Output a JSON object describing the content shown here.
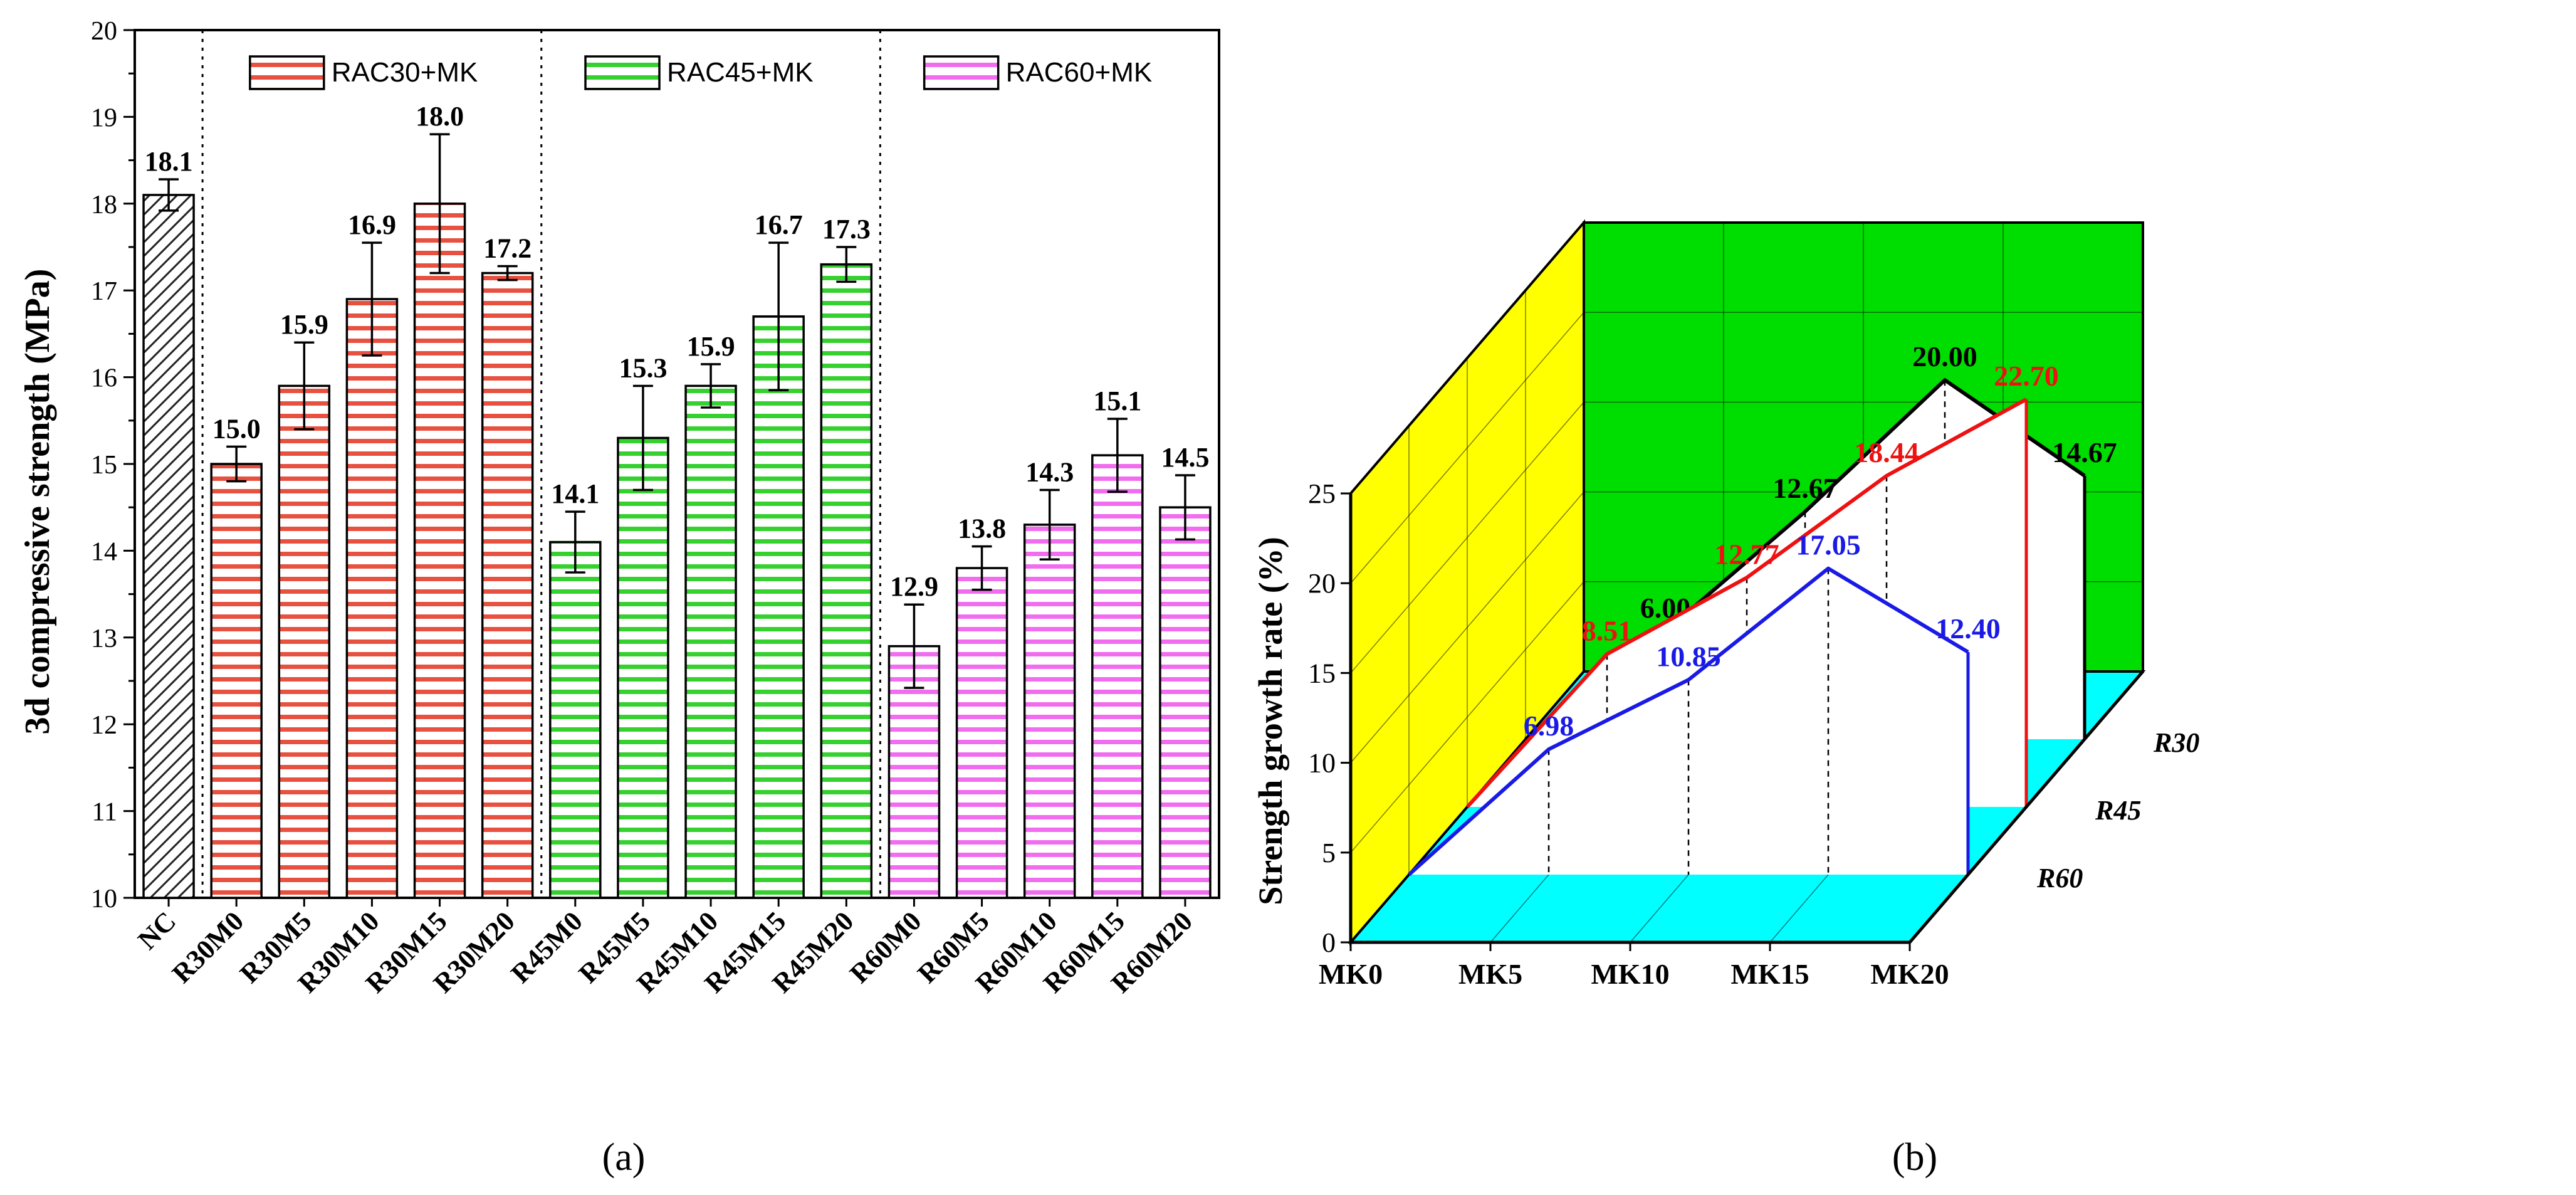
{
  "chart_data": [
    {
      "type": "bar",
      "panel_label": "(a)",
      "ylabel": "3d compressive strength (MPa)",
      "xlabel": "",
      "ylim": [
        10,
        20
      ],
      "yticks": [
        "10",
        "11",
        "12",
        "13",
        "14",
        "15",
        "16",
        "17",
        "18",
        "19",
        "20"
      ],
      "legend": [
        {
          "name": "RAC30+MK",
          "color": "#e8503f"
        },
        {
          "name": "RAC45+MK",
          "color": "#35d12f"
        },
        {
          "name": "RAC60+MK",
          "color": "#f26cf0"
        }
      ],
      "categories": [
        "NC",
        "R30M0",
        "R30M5",
        "R30M10",
        "R30M15",
        "R30M20",
        "R45M0",
        "R45M5",
        "R45M10",
        "R45M15",
        "R45M20",
        "R60M0",
        "R60M5",
        "R60M10",
        "R60M15",
        "R60M20"
      ],
      "values": [
        18.1,
        15.0,
        15.9,
        16.9,
        18.0,
        17.2,
        14.1,
        15.3,
        15.9,
        16.7,
        17.3,
        12.9,
        13.8,
        14.3,
        15.1,
        14.5
      ],
      "labels": [
        "18.1",
        "15.0",
        "15.9",
        "16.9",
        "18.0",
        "17.2",
        "14.1",
        "15.3",
        "15.9",
        "16.7",
        "17.3",
        "12.9",
        "13.8",
        "14.3",
        "15.1",
        "14.5"
      ],
      "errors": [
        0.18,
        0.2,
        0.5,
        0.65,
        0.8,
        0.08,
        0.35,
        0.6,
        0.25,
        0.85,
        0.2,
        0.48,
        0.25,
        0.4,
        0.42,
        0.37
      ],
      "groups": [
        "NC",
        "RAC30",
        "RAC30",
        "RAC30",
        "RAC30",
        "RAC30",
        "RAC45",
        "RAC45",
        "RAC45",
        "RAC45",
        "RAC45",
        "RAC60",
        "RAC60",
        "RAC60",
        "RAC60",
        "RAC60"
      ],
      "colors": {
        "NC": "#9a9a9a",
        "RAC30": "#e8503f",
        "RAC45": "#35d12f",
        "RAC60": "#f26cf0"
      }
    },
    {
      "type": "line",
      "panel_label": "(b)",
      "ylabel": "Strength growth rate (%)",
      "ylim": [
        0,
        25
      ],
      "yticks": [
        "0",
        "5",
        "10",
        "15",
        "20",
        "25"
      ],
      "categories": [
        "MK0",
        "MK5",
        "MK10",
        "MK15",
        "MK20"
      ],
      "series": [
        {
          "name": "R30",
          "color": "#000000",
          "values": [
            0,
            6.0,
            12.67,
            20.0,
            14.67
          ],
          "labels": [
            "",
            "6.00",
            "12.67",
            "20.00",
            "14.67"
          ]
        },
        {
          "name": "R45",
          "color": "#ee1111",
          "values": [
            0,
            8.51,
            12.77,
            18.44,
            22.7
          ],
          "labels": [
            "",
            "8.51",
            "12.77",
            "18.44",
            "22.70"
          ]
        },
        {
          "name": "R60",
          "color": "#1a1ae6",
          "values": [
            0,
            6.98,
            10.85,
            17.05,
            12.4
          ],
          "labels": [
            "",
            "6.98",
            "10.85",
            "17.05",
            "12.40"
          ]
        }
      ],
      "colors": {
        "back_wall": "#00dd00",
        "side_wall": "#ffff00",
        "floor": "#00ffff",
        "depth_lines": "#000000"
      }
    }
  ]
}
